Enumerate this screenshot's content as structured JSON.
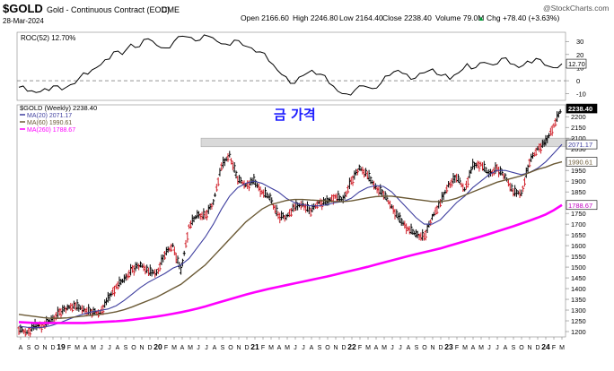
{
  "header": {
    "symbol": "$GOLD",
    "description": "Gold - Continuous Contract (EOD)",
    "exchange": "CME",
    "date": "28-Mar-2024",
    "open": "Open 2166.60",
    "high": "High 2246.80",
    "low": "Low 2164.40",
    "close": "Close 2238.40",
    "volume": "Volume 79.0M",
    "change": "Chg +78.40 (+3.63%)",
    "change_arrow": "▲",
    "watermark": "@StockCharts.com"
  },
  "annotation": "금 가격",
  "chart_data": [
    {
      "type": "line",
      "title": "ROC(52) 12.70%",
      "yticks": [
        -10,
        0,
        10,
        20,
        30
      ],
      "ylim": [
        -15,
        37
      ],
      "last_value_label": "12.70",
      "series": [
        {
          "name": "ROC(52)",
          "color": "#000000",
          "values": [
            -5,
            -8,
            -9,
            -6,
            -4,
            -7,
            -3,
            2,
            5,
            10,
            16,
            22,
            20,
            28,
            26,
            32,
            27,
            25,
            30,
            34,
            33,
            31,
            34,
            30,
            28,
            31,
            27,
            25,
            22,
            15,
            8,
            3,
            -2,
            4,
            8,
            5,
            -2,
            -8,
            -10,
            -7,
            -4,
            -6,
            -2,
            4,
            8,
            5,
            2,
            6,
            9,
            4,
            1,
            6,
            13,
            10,
            14,
            12,
            17,
            13,
            10,
            15,
            17,
            12,
            10,
            13
          ]
        }
      ]
    },
    {
      "type": "line",
      "title": "$GOLD (Weekly) 2238.40",
      "ylim": [
        1175,
        2255
      ],
      "yticks": [
        1200,
        1250,
        1300,
        1350,
        1400,
        1450,
        1500,
        1550,
        1600,
        1650,
        1700,
        1750,
        1800,
        1850,
        1900,
        1950,
        2000,
        2050,
        2100,
        2150,
        2200
      ],
      "xticks": [
        "A",
        "S",
        "O",
        "N",
        "D",
        "19",
        "F",
        "M",
        "A",
        "M",
        "J",
        "J",
        "A",
        "S",
        "O",
        "N",
        "D",
        "20",
        "F",
        "M",
        "A",
        "M",
        "J",
        "J",
        "A",
        "S",
        "O",
        "N",
        "D",
        "21",
        "F",
        "M",
        "A",
        "M",
        "J",
        "J",
        "A",
        "S",
        "O",
        "N",
        "D",
        "22",
        "F",
        "M",
        "A",
        "M",
        "J",
        "J",
        "A",
        "S",
        "O",
        "N",
        "D",
        "23",
        "F",
        "M",
        "A",
        "M",
        "J",
        "J",
        "A",
        "S",
        "O",
        "N",
        "D",
        "24",
        "F",
        "M"
      ],
      "resistance_band": [
        2060,
        2100
      ],
      "series": [
        {
          "name": "$GOLD (Weekly)",
          "value_label": "2238.40",
          "color": "#000000",
          "values": [
            1210,
            1195,
            1225,
            1230,
            1250,
            1290,
            1310,
            1320,
            1300,
            1290,
            1285,
            1350,
            1410,
            1440,
            1490,
            1510,
            1480,
            1470,
            1560,
            1600,
            1480,
            1690,
            1740,
            1740,
            1800,
            1970,
            2020,
            1910,
            1880,
            1900,
            1850,
            1820,
            1740,
            1730,
            1780,
            1790,
            1760,
            1800,
            1800,
            1830,
            1810,
            1900,
            1960,
            1930,
            1870,
            1840,
            1780,
            1720,
            1680,
            1650,
            1640,
            1730,
            1800,
            1880,
            1920,
            1860,
            1970,
            1980,
            1930,
            1960,
            1920,
            1850,
            1840,
            1990,
            2050,
            2080,
            2160,
            2238
          ]
        },
        {
          "name": "MA(20)",
          "value_label": "2071.17",
          "color": "#3f3f9f",
          "values": [
            1225,
            1220,
            1218,
            1220,
            1228,
            1240,
            1255,
            1270,
            1282,
            1292,
            1298,
            1305,
            1320,
            1345,
            1375,
            1405,
            1430,
            1450,
            1470,
            1495,
            1510,
            1540,
            1590,
            1640,
            1700,
            1770,
            1830,
            1870,
            1890,
            1900,
            1890,
            1870,
            1850,
            1820,
            1800,
            1790,
            1785,
            1785,
            1790,
            1800,
            1805,
            1820,
            1850,
            1870,
            1880,
            1875,
            1850,
            1810,
            1770,
            1730,
            1700,
            1700,
            1720,
            1760,
            1800,
            1830,
            1870,
            1900,
            1930,
            1950,
            1950,
            1940,
            1930,
            1940,
            1960,
            1990,
            2030,
            2071
          ]
        },
        {
          "name": "MA(60)",
          "value_label": "1990.61",
          "color": "#6b5a36",
          "values": [
            1280,
            1275,
            1270,
            1265,
            1262,
            1262,
            1264,
            1268,
            1272,
            1276,
            1280,
            1285,
            1292,
            1302,
            1315,
            1330,
            1345,
            1360,
            1380,
            1400,
            1420,
            1450,
            1480,
            1510,
            1550,
            1590,
            1630,
            1670,
            1710,
            1740,
            1770,
            1790,
            1800,
            1810,
            1815,
            1815,
            1812,
            1810,
            1808,
            1805,
            1805,
            1808,
            1815,
            1822,
            1828,
            1830,
            1830,
            1825,
            1820,
            1815,
            1810,
            1805,
            1805,
            1810,
            1820,
            1835,
            1850,
            1865,
            1880,
            1895,
            1905,
            1915,
            1925,
            1940,
            1955,
            1965,
            1980,
            1990
          ]
        },
        {
          "name": "MA(260)",
          "value_label": "1788.67",
          "color": "#ff00ff",
          "values": [
            1244,
            1242,
            1240,
            1240,
            1240,
            1240,
            1240,
            1240,
            1240,
            1242,
            1244,
            1246,
            1248,
            1251,
            1255,
            1260,
            1265,
            1270,
            1276,
            1283,
            1290,
            1298,
            1307,
            1317,
            1328,
            1339,
            1350,
            1361,
            1372,
            1382,
            1391,
            1400,
            1408,
            1416,
            1424,
            1432,
            1440,
            1448,
            1456,
            1465,
            1474,
            1483,
            1492,
            1501,
            1511,
            1521,
            1531,
            1541,
            1551,
            1560,
            1569,
            1578,
            1587,
            1598,
            1609,
            1620,
            1631,
            1642,
            1654,
            1666,
            1678,
            1690,
            1703,
            1716,
            1730,
            1745,
            1765,
            1789
          ]
        }
      ]
    }
  ]
}
